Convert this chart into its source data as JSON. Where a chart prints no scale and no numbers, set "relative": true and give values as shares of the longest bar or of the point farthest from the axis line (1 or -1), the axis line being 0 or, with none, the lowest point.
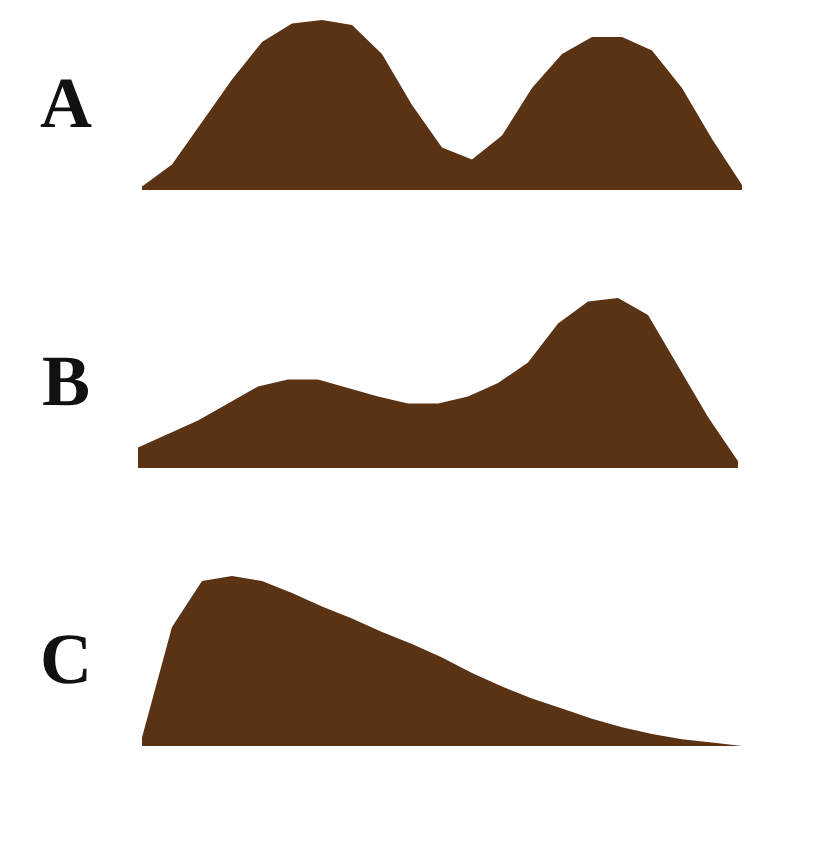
{
  "chart_data": [
    {
      "type": "area",
      "title": "A",
      "relative": true,
      "color": "#5a3214",
      "categories": [
        null,
        null,
        null,
        null,
        null,
        null,
        null,
        null,
        null,
        null,
        null,
        null,
        null,
        null,
        null,
        null,
        null,
        null,
        null,
        null,
        null
      ],
      "values": [
        0.02,
        0.15,
        0.4,
        0.65,
        0.87,
        0.98,
        1,
        0.97,
        0.8,
        0.5,
        0.25,
        0.18,
        0.32,
        0.6,
        0.8,
        0.9,
        0.9,
        0.82,
        0.6,
        0.3,
        0.03
      ]
    },
    {
      "type": "area",
      "title": "B",
      "relative": true,
      "color": "#5a3214",
      "categories": [
        null,
        null,
        null,
        null,
        null,
        null,
        null,
        null,
        null,
        null,
        null,
        null,
        null,
        null,
        null,
        null,
        null,
        null,
        null,
        null,
        null
      ],
      "values": [
        0.12,
        0.2,
        0.28,
        0.38,
        0.48,
        0.52,
        0.52,
        0.47,
        0.42,
        0.38,
        0.38,
        0.42,
        0.5,
        0.62,
        0.85,
        0.98,
        1,
        0.9,
        0.6,
        0.3,
        0.04
      ]
    },
    {
      "type": "area",
      "title": "C",
      "relative": true,
      "color": "#5a3214",
      "categories": [
        null,
        null,
        null,
        null,
        null,
        null,
        null,
        null,
        null,
        null,
        null,
        null,
        null,
        null,
        null,
        null,
        null,
        null,
        null,
        null,
        null
      ],
      "values": [
        0.05,
        0.7,
        0.97,
        1,
        0.97,
        0.9,
        0.82,
        0.75,
        0.67,
        0.6,
        0.52,
        0.43,
        0.35,
        0.28,
        0.22,
        0.16,
        0.11,
        0.07,
        0.04,
        0.02,
        0
      ]
    }
  ]
}
